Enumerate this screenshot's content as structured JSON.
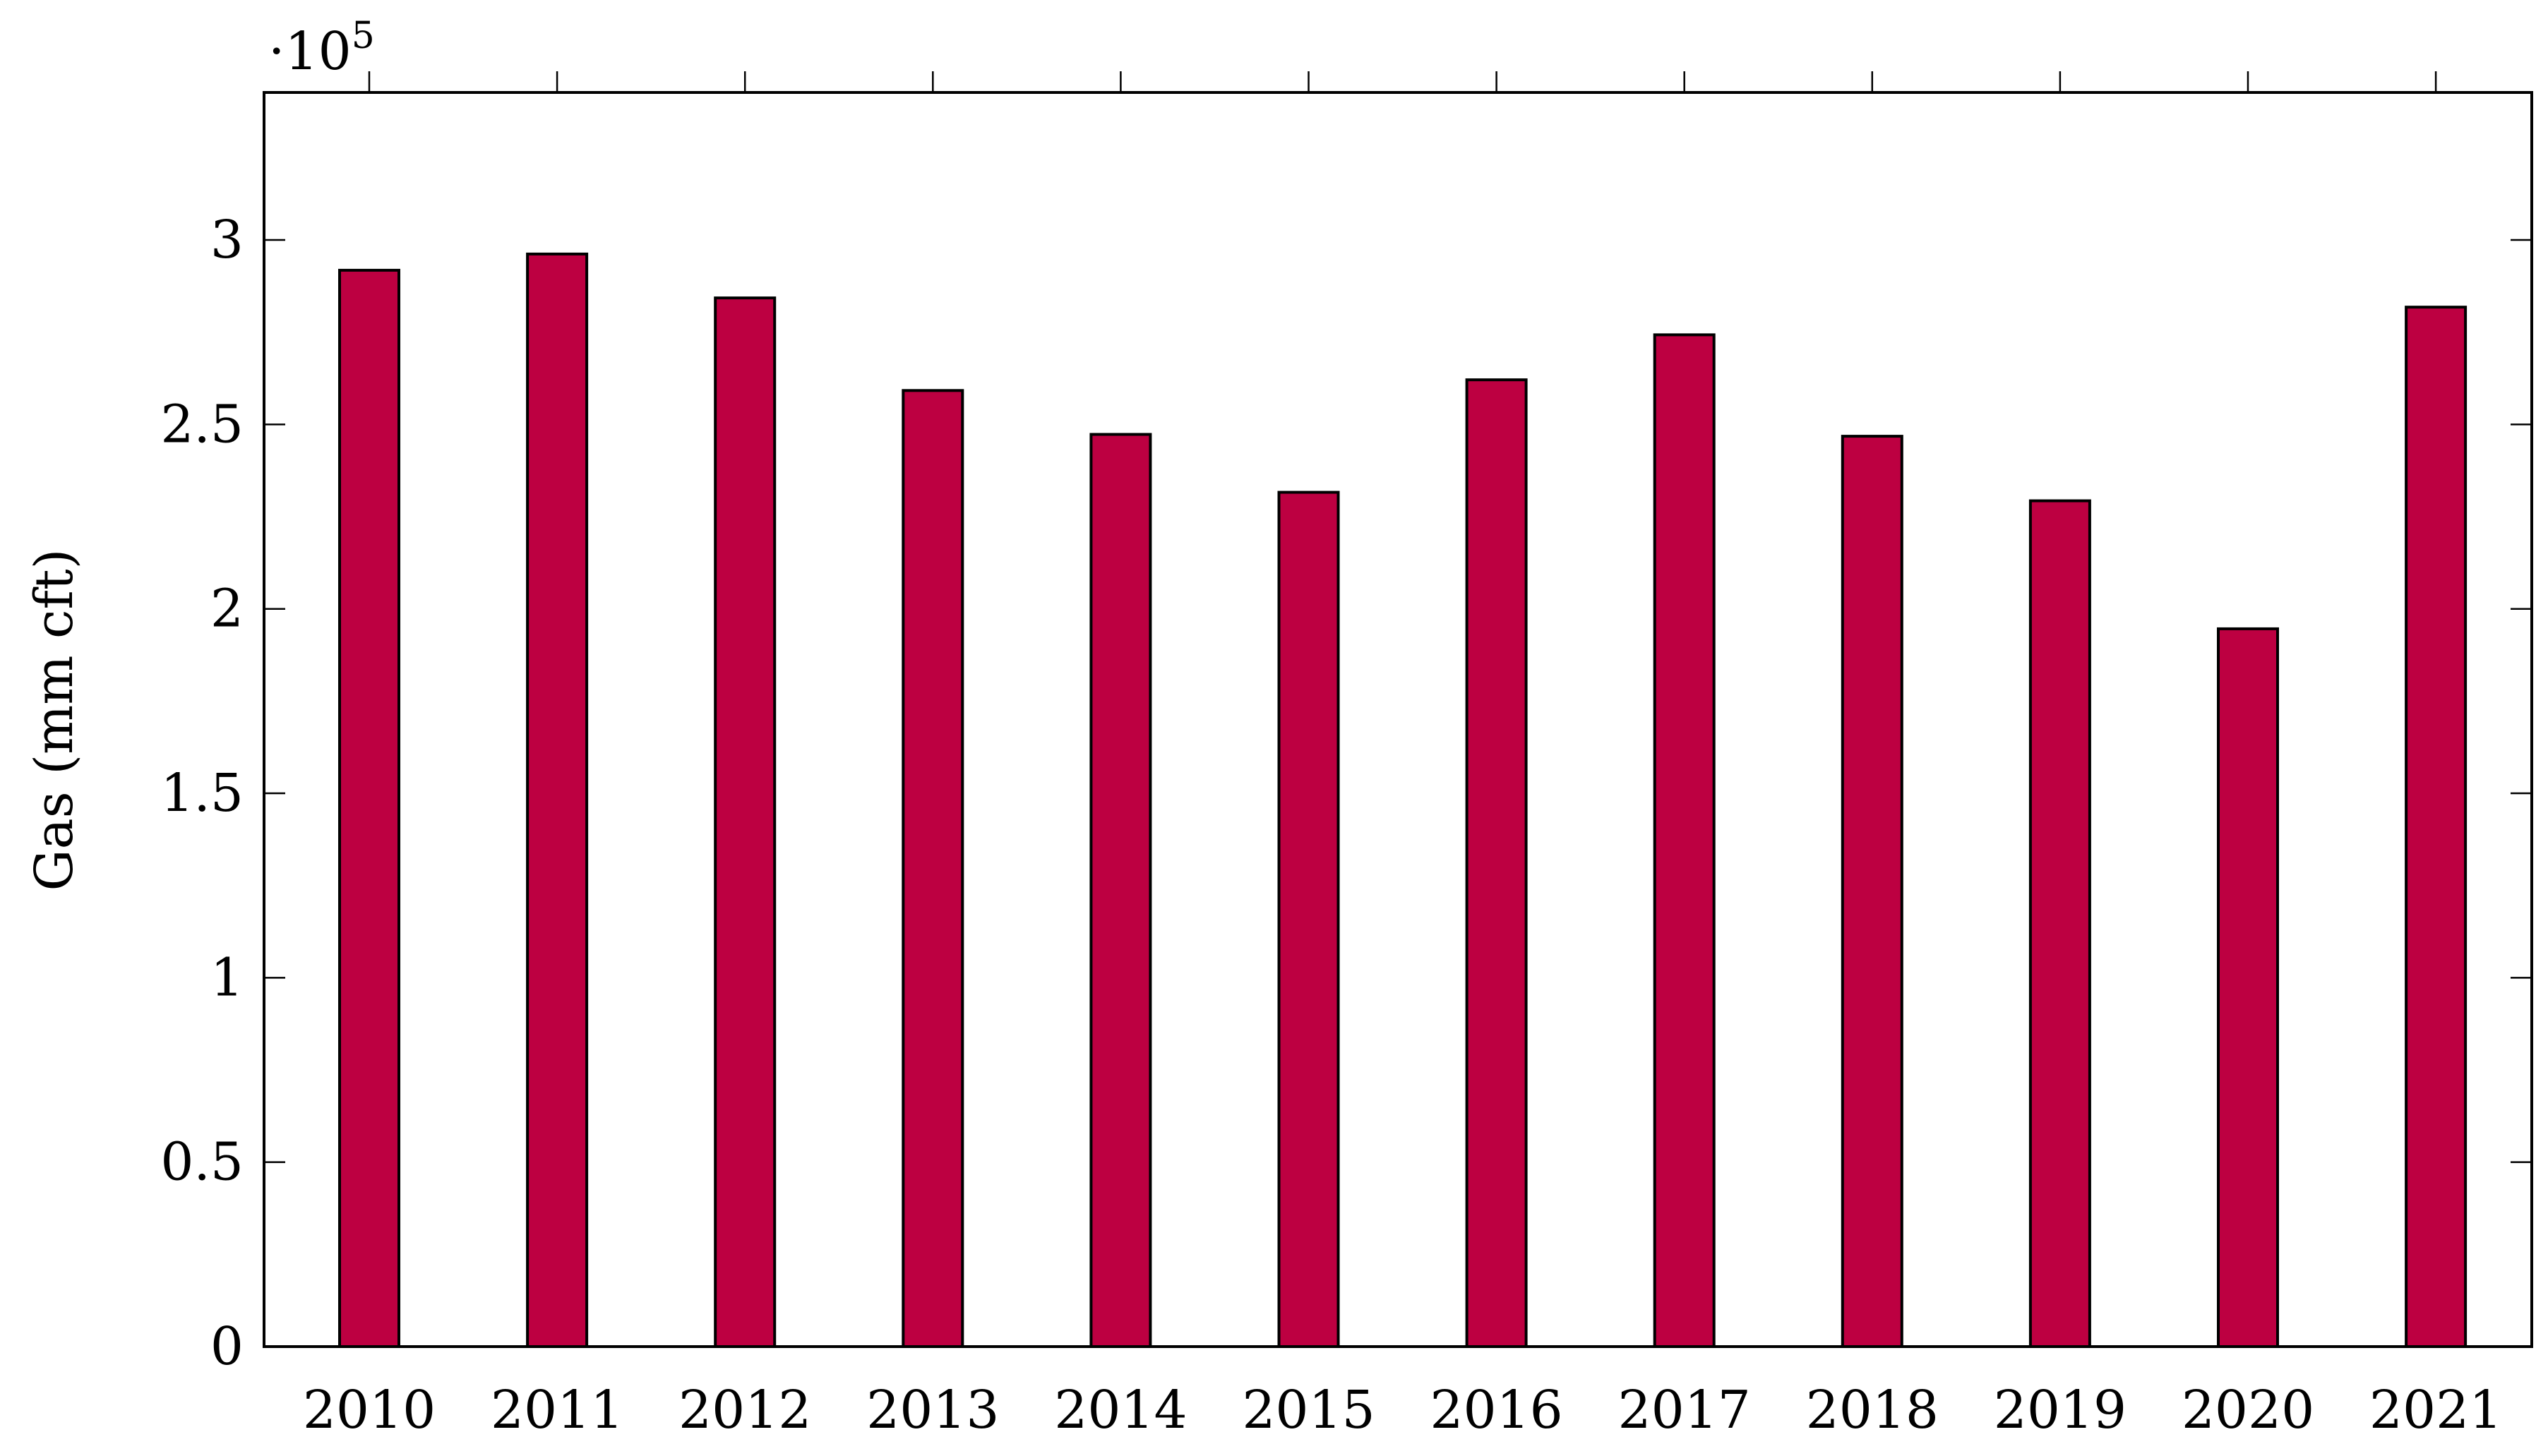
{
  "chart_data": {
    "type": "bar",
    "title": "",
    "xlabel": "",
    "ylabel": "Gas (mm cft)",
    "y_multiplier": {
      "base": "·10",
      "exponent": "5"
    },
    "categories": [
      "2010",
      "2011",
      "2012",
      "2013",
      "2014",
      "2015",
      "2016",
      "2017",
      "2018",
      "2019",
      "2020",
      "2021"
    ],
    "values": [
      291800,
      296200,
      284300,
      259200,
      247300,
      231600,
      262100,
      274300,
      246800,
      229300,
      194600,
      281800
    ],
    "ylim": [
      0,
      340000
    ],
    "y_ticks": [
      0,
      50000,
      100000,
      150000,
      200000,
      250000,
      300000
    ],
    "y_tick_labels": [
      "0",
      "0.5",
      "1",
      "1.5",
      "2",
      "2.5",
      "3"
    ],
    "grid": false,
    "legend": "none",
    "bar_color": "#bd0041"
  }
}
